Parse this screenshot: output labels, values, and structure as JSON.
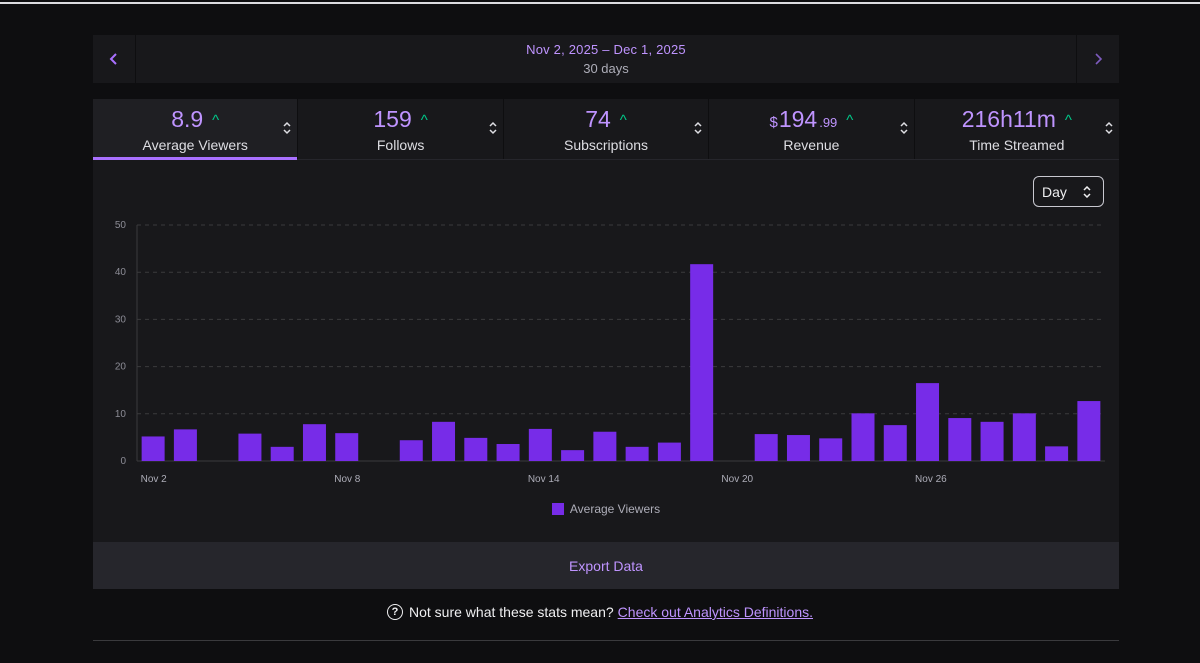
{
  "date_bar": {
    "range": "Nov 2, 2025 – Dec 1, 2025",
    "days": "30 days",
    "prev_icon": "chevron-left-icon",
    "next_icon": "chevron-right-icon"
  },
  "tabs": [
    {
      "value": "8.9",
      "label": "Average Viewers",
      "active": true
    },
    {
      "value": "159",
      "label": "Follows",
      "active": false
    },
    {
      "value": "74",
      "label": "Subscriptions",
      "active": false
    },
    {
      "currency": "$",
      "value": "194",
      "cents": ".99",
      "label": "Revenue",
      "active": false
    },
    {
      "value": "216h11m",
      "label": "Time Streamed",
      "active": false
    }
  ],
  "granularity": {
    "selected": "Day"
  },
  "colors": {
    "accent": "#a970ff",
    "bar": "#772ce8",
    "up": "#00c788"
  },
  "chart_data": {
    "type": "bar",
    "categories": [
      "Nov 2",
      "Nov 3",
      "Nov 4",
      "Nov 5",
      "Nov 6",
      "Nov 7",
      "Nov 8",
      "Nov 9",
      "Nov 10",
      "Nov 11",
      "Nov 12",
      "Nov 13",
      "Nov 14",
      "Nov 15",
      "Nov 16",
      "Nov 17",
      "Nov 18",
      "Nov 19",
      "Nov 20",
      "Nov 21",
      "Nov 22",
      "Nov 23",
      "Nov 24",
      "Nov 25",
      "Nov 26",
      "Nov 27",
      "Nov 28",
      "Nov 29",
      "Nov 30",
      "Dec 1"
    ],
    "values": [
      5.2,
      6.7,
      0,
      5.8,
      3.0,
      7.8,
      5.9,
      0,
      4.4,
      8.3,
      4.9,
      3.6,
      6.8,
      2.3,
      6.2,
      3.0,
      3.9,
      41.7,
      0,
      5.7,
      5.5,
      4.8,
      10.1,
      7.6,
      16.5,
      9.1,
      8.3,
      10.1,
      3.1,
      12.7
    ],
    "series_name": "Average Viewers",
    "x_tick_labels": [
      "Nov 2",
      "Nov 8",
      "Nov 14",
      "Nov 20",
      "Nov 26"
    ],
    "y_ticks": [
      0,
      10,
      20,
      30,
      40,
      50
    ],
    "ylim": [
      0,
      50
    ],
    "legend": "Average Viewers"
  },
  "export_label": "Export Data",
  "footer": {
    "text": "Not sure what these stats mean?",
    "link": "Check out Analytics Definitions."
  }
}
